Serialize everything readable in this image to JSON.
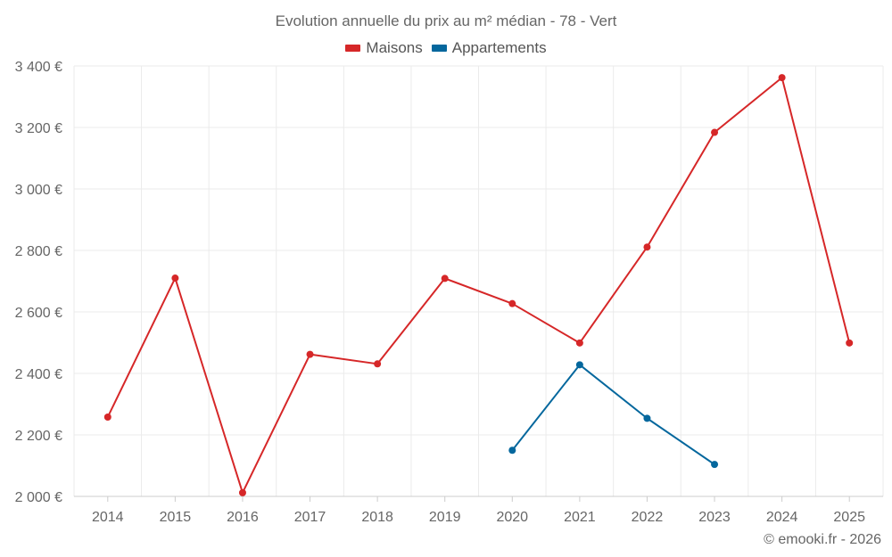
{
  "chart_data": {
    "type": "line",
    "title": "Evolution annuelle du prix au m² médian - 78 - Vert",
    "categories": [
      "2014",
      "2015",
      "2016",
      "2017",
      "2018",
      "2019",
      "2020",
      "2021",
      "2022",
      "2023",
      "2024",
      "2025"
    ],
    "series": [
      {
        "name": "Maisons",
        "color": "#d62728",
        "values": [
          2258,
          2710,
          2012,
          2462,
          2431,
          2709,
          2627,
          2499,
          2811,
          3184,
          3362,
          2499
        ]
      },
      {
        "name": "Appartements",
        "color": "#04679d",
        "values": [
          null,
          null,
          null,
          null,
          null,
          null,
          2150,
          2428,
          2254,
          2104,
          null,
          null
        ]
      }
    ],
    "yticks": [
      "2 000 €",
      "2 200 €",
      "2 400 €",
      "2 600 €",
      "2 800 €",
      "3 000 €",
      "3 200 €",
      "3 400 €"
    ],
    "ytick_values": [
      2000,
      2200,
      2400,
      2600,
      2800,
      3000,
      3200,
      3400
    ],
    "ylim": [
      2000,
      3400
    ],
    "xlabel": "",
    "ylabel": "",
    "grid": true,
    "legend_position": "top-center"
  },
  "watermark": "© emooki.fr - 2026"
}
